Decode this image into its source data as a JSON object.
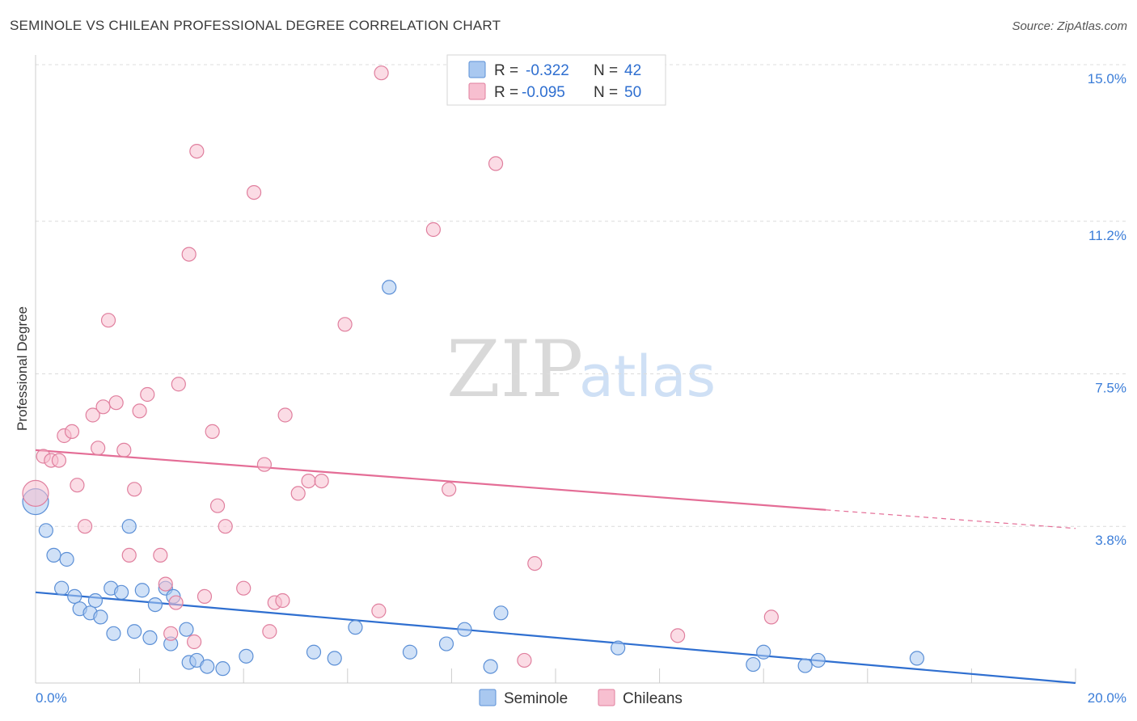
{
  "header": {
    "title": "SEMINOLE VS CHILEAN PROFESSIONAL DEGREE CORRELATION CHART",
    "source": "Source: ZipAtlas.com"
  },
  "watermark": {
    "zip": "ZIP",
    "atlas": "atlas"
  },
  "legend": {
    "rows": [
      {
        "r_label": "R =",
        "r_value": "-0.322",
        "n_label": "N =",
        "n_value": "42",
        "color": "#a9c8f0",
        "stroke": "#5b8fd6"
      },
      {
        "r_label": "R =",
        "r_value": "-0.095",
        "n_label": "N =",
        "n_value": "50",
        "color": "#f7bfd0",
        "stroke": "#e07f9e"
      }
    ]
  },
  "chart_data": {
    "type": "scatter",
    "xlabel": "",
    "ylabel": "Professional Degree",
    "xlim": [
      0,
      20
    ],
    "ylim": [
      0,
      15
    ],
    "x_tick_labels": {
      "min": "0.0%",
      "max": "20.0%"
    },
    "y_ticks": [
      {
        "value": 3.8,
        "label": "3.8%"
      },
      {
        "value": 7.5,
        "label": "7.5%"
      },
      {
        "value": 11.2,
        "label": "11.2%"
      },
      {
        "value": 15.0,
        "label": "15.0%"
      }
    ],
    "grid": true,
    "legend_position": "bottom-center",
    "series": [
      {
        "name": "Seminole",
        "color": "#a9c8f0",
        "stroke": "#5b8fd6",
        "line_color": "#2f6fd0",
        "trend": {
          "x": [
            0,
            20
          ],
          "y": [
            2.2,
            0.0
          ]
        },
        "points": [
          {
            "x": 0.0,
            "y": 4.4,
            "big": true
          },
          {
            "x": 0.2,
            "y": 3.7
          },
          {
            "x": 0.35,
            "y": 3.1
          },
          {
            "x": 0.6,
            "y": 3.0
          },
          {
            "x": 0.5,
            "y": 2.3
          },
          {
            "x": 0.75,
            "y": 2.1
          },
          {
            "x": 0.85,
            "y": 1.8
          },
          {
            "x": 1.05,
            "y": 1.7
          },
          {
            "x": 1.15,
            "y": 2.0
          },
          {
            "x": 1.25,
            "y": 1.6
          },
          {
            "x": 1.45,
            "y": 2.3
          },
          {
            "x": 1.65,
            "y": 2.2
          },
          {
            "x": 1.8,
            "y": 3.8
          },
          {
            "x": 2.05,
            "y": 2.25
          },
          {
            "x": 2.3,
            "y": 1.9
          },
          {
            "x": 2.5,
            "y": 2.3
          },
          {
            "x": 2.65,
            "y": 2.1
          },
          {
            "x": 1.5,
            "y": 1.2
          },
          {
            "x": 1.9,
            "y": 1.25
          },
          {
            "x": 2.2,
            "y": 1.1
          },
          {
            "x": 2.6,
            "y": 0.95
          },
          {
            "x": 2.9,
            "y": 1.3
          },
          {
            "x": 2.95,
            "y": 0.5
          },
          {
            "x": 3.1,
            "y": 0.55
          },
          {
            "x": 3.3,
            "y": 0.4
          },
          {
            "x": 3.6,
            "y": 0.35
          },
          {
            "x": 4.05,
            "y": 0.65
          },
          {
            "x": 5.35,
            "y": 0.75
          },
          {
            "x": 5.75,
            "y": 0.6
          },
          {
            "x": 6.15,
            "y": 1.35
          },
          {
            "x": 6.8,
            "y": 9.6
          },
          {
            "x": 7.2,
            "y": 0.75
          },
          {
            "x": 7.9,
            "y": 0.95
          },
          {
            "x": 8.25,
            "y": 1.3
          },
          {
            "x": 8.75,
            "y": 0.4
          },
          {
            "x": 8.95,
            "y": 1.7
          },
          {
            "x": 11.2,
            "y": 0.85
          },
          {
            "x": 13.8,
            "y": 0.45
          },
          {
            "x": 14.0,
            "y": 0.75
          },
          {
            "x": 14.8,
            "y": 0.42
          },
          {
            "x": 15.05,
            "y": 0.55
          },
          {
            "x": 16.95,
            "y": 0.6
          }
        ]
      },
      {
        "name": "Chileans",
        "color": "#f7bfd0",
        "stroke": "#e07f9e",
        "line_color": "#e46d96",
        "trend": {
          "x": [
            0,
            15.2
          ],
          "y": [
            5.65,
            4.2
          ]
        },
        "trend_dashed": {
          "x": [
            15.2,
            20
          ],
          "y": [
            4.2,
            3.75
          ]
        },
        "points": [
          {
            "x": 0.0,
            "y": 4.6,
            "big": true
          },
          {
            "x": 0.15,
            "y": 5.5
          },
          {
            "x": 0.3,
            "y": 5.4
          },
          {
            "x": 0.45,
            "y": 5.4
          },
          {
            "x": 0.55,
            "y": 6.0
          },
          {
            "x": 0.7,
            "y": 6.1
          },
          {
            "x": 0.8,
            "y": 4.8
          },
          {
            "x": 0.95,
            "y": 3.8
          },
          {
            "x": 1.1,
            "y": 6.5
          },
          {
            "x": 1.2,
            "y": 5.7
          },
          {
            "x": 1.3,
            "y": 6.7
          },
          {
            "x": 1.4,
            "y": 8.8
          },
          {
            "x": 1.55,
            "y": 6.8
          },
          {
            "x": 1.7,
            "y": 5.65
          },
          {
            "x": 1.8,
            "y": 3.1
          },
          {
            "x": 1.9,
            "y": 4.7
          },
          {
            "x": 2.0,
            "y": 6.6
          },
          {
            "x": 2.15,
            "y": 7.0
          },
          {
            "x": 2.4,
            "y": 3.1
          },
          {
            "x": 2.5,
            "y": 2.4
          },
          {
            "x": 2.7,
            "y": 1.95
          },
          {
            "x": 2.6,
            "y": 1.2
          },
          {
            "x": 2.75,
            "y": 7.25
          },
          {
            "x": 2.95,
            "y": 10.4
          },
          {
            "x": 3.05,
            "y": 1.0
          },
          {
            "x": 3.1,
            "y": 12.9
          },
          {
            "x": 3.25,
            "y": 2.1
          },
          {
            "x": 3.4,
            "y": 6.1
          },
          {
            "x": 3.5,
            "y": 4.3
          },
          {
            "x": 3.65,
            "y": 3.8
          },
          {
            "x": 4.0,
            "y": 2.3
          },
          {
            "x": 4.2,
            "y": 11.9
          },
          {
            "x": 4.4,
            "y": 5.3
          },
          {
            "x": 4.5,
            "y": 1.25
          },
          {
            "x": 4.6,
            "y": 1.95
          },
          {
            "x": 4.75,
            "y": 2.0
          },
          {
            "x": 4.8,
            "y": 6.5
          },
          {
            "x": 5.05,
            "y": 4.6
          },
          {
            "x": 5.25,
            "y": 4.9
          },
          {
            "x": 5.5,
            "y": 4.9
          },
          {
            "x": 5.95,
            "y": 8.7
          },
          {
            "x": 6.6,
            "y": 1.75
          },
          {
            "x": 6.65,
            "y": 14.8
          },
          {
            "x": 7.65,
            "y": 11.0
          },
          {
            "x": 7.95,
            "y": 4.7
          },
          {
            "x": 8.85,
            "y": 12.6
          },
          {
            "x": 9.4,
            "y": 0.55
          },
          {
            "x": 9.6,
            "y": 2.9
          },
          {
            "x": 12.35,
            "y": 1.15
          },
          {
            "x": 14.15,
            "y": 1.6
          }
        ]
      }
    ]
  }
}
